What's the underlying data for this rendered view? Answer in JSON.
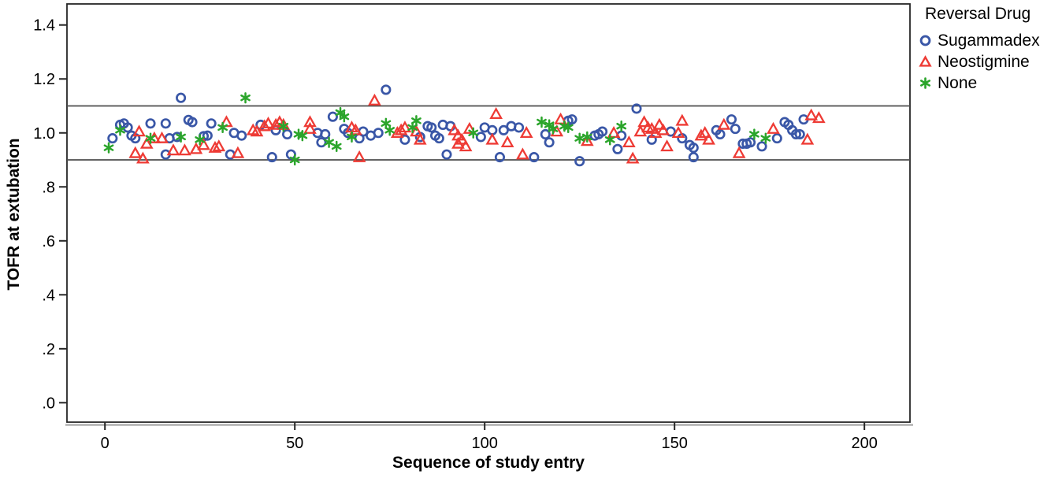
{
  "chart_data": {
    "type": "scatter",
    "xlabel": "Sequence of study entry",
    "ylabel": "TOFR at extubation",
    "xlim": [
      -10,
      212
    ],
    "ylim": [
      -0.072,
      1.478
    ],
    "x_ticks": [
      {
        "v": 0,
        "label": "0"
      },
      {
        "v": 50,
        "label": "50"
      },
      {
        "v": 100,
        "label": "100"
      },
      {
        "v": 150,
        "label": "150"
      },
      {
        "v": 200,
        "label": "200"
      }
    ],
    "y_ticks": [
      {
        "v": 1.4,
        "label": "1.4"
      },
      {
        "v": 1.2,
        "label": "1.2"
      },
      {
        "v": 1.0,
        "label": "1.0"
      },
      {
        "v": 0.8,
        "label": ".8"
      },
      {
        "v": 0.6,
        "label": ".6"
      },
      {
        "v": 0.4,
        "label": ".4"
      },
      {
        "v": 0.2,
        "label": ".2"
      },
      {
        "v": 0.0,
        "label": ".0"
      }
    ],
    "reference_lines": [
      1.1,
      0.9
    ],
    "legend": {
      "title": "Reversal Drug",
      "position": "top-right-outside"
    },
    "colors": {
      "frame": "#262626",
      "reference_line": "#4d4d4d",
      "frame_shadow": "#b0b0b0",
      "text": "#000000"
    },
    "series": [
      {
        "name": "Sugammadex",
        "marker": "circle",
        "color": "#3a57a7",
        "points": [
          [
            2,
            0.98
          ],
          [
            4,
            1.03
          ],
          [
            5,
            1.035
          ],
          [
            6,
            1.02
          ],
          [
            7,
            0.99
          ],
          [
            8,
            0.98
          ],
          [
            12,
            1.035
          ],
          [
            16,
            1.035
          ],
          [
            16,
            0.92
          ],
          [
            17,
            0.98
          ],
          [
            19,
            0.985
          ],
          [
            20,
            1.13
          ],
          [
            22,
            1.048
          ],
          [
            23,
            1.04
          ],
          [
            26,
            0.988
          ],
          [
            27,
            0.99
          ],
          [
            28,
            1.035
          ],
          [
            33,
            0.92
          ],
          [
            34,
            1.0
          ],
          [
            36,
            0.99
          ],
          [
            41,
            1.03
          ],
          [
            44,
            0.91
          ],
          [
            45,
            1.01
          ],
          [
            48,
            0.995
          ],
          [
            49,
            0.92
          ],
          [
            56,
            1.0
          ],
          [
            57,
            0.965
          ],
          [
            58,
            0.995
          ],
          [
            60,
            1.06
          ],
          [
            63,
            1.015
          ],
          [
            64,
            1.0
          ],
          [
            67,
            0.98
          ],
          [
            68,
            1.005
          ],
          [
            70,
            0.99
          ],
          [
            72,
            1.0
          ],
          [
            74,
            1.16
          ],
          [
            79,
            0.975
          ],
          [
            83,
            0.985
          ],
          [
            85,
            1.025
          ],
          [
            86,
            1.02
          ],
          [
            87,
            0.99
          ],
          [
            88,
            0.98
          ],
          [
            89,
            1.03
          ],
          [
            90,
            0.92
          ],
          [
            91,
            1.025
          ],
          [
            99,
            0.985
          ],
          [
            100,
            1.02
          ],
          [
            102,
            1.01
          ],
          [
            104,
            0.91
          ],
          [
            105,
            1.01
          ],
          [
            107,
            1.025
          ],
          [
            109,
            1.02
          ],
          [
            113,
            0.91
          ],
          [
            116,
            0.995
          ],
          [
            117,
            0.965
          ],
          [
            122,
            1.045
          ],
          [
            123,
            1.05
          ],
          [
            125,
            0.895
          ],
          [
            129,
            0.99
          ],
          [
            130,
            0.995
          ],
          [
            131,
            1.005
          ],
          [
            135,
            0.94
          ],
          [
            136,
            0.99
          ],
          [
            140,
            1.09
          ],
          [
            144,
            0.975
          ],
          [
            149,
            1.005
          ],
          [
            152,
            0.98
          ],
          [
            154,
            0.955
          ],
          [
            155,
            0.945
          ],
          [
            155,
            0.91
          ],
          [
            161,
            1.01
          ],
          [
            162,
            0.995
          ],
          [
            165,
            1.05
          ],
          [
            166,
            1.015
          ],
          [
            168,
            0.96
          ],
          [
            169,
            0.96
          ],
          [
            170,
            0.965
          ],
          [
            173,
            0.95
          ],
          [
            177,
            0.98
          ],
          [
            179,
            1.04
          ],
          [
            180,
            1.03
          ],
          [
            181,
            1.01
          ],
          [
            182,
            0.995
          ],
          [
            183,
            0.995
          ],
          [
            184,
            1.05
          ]
        ]
      },
      {
        "name": "Neostigmine",
        "marker": "triangle",
        "color": "#ee3b35",
        "points": [
          [
            8,
            0.925
          ],
          [
            9,
            1.005
          ],
          [
            10,
            0.905
          ],
          [
            11,
            0.96
          ],
          [
            13,
            0.98
          ],
          [
            15,
            0.98
          ],
          [
            18,
            0.935
          ],
          [
            21,
            0.935
          ],
          [
            24,
            0.94
          ],
          [
            26,
            0.955
          ],
          [
            29,
            0.945
          ],
          [
            30,
            0.95
          ],
          [
            32,
            1.04
          ],
          [
            35,
            0.925
          ],
          [
            39,
            1.01
          ],
          [
            40,
            1.005
          ],
          [
            42,
            1.025
          ],
          [
            43,
            1.035
          ],
          [
            45,
            1.03
          ],
          [
            46,
            1.04
          ],
          [
            47,
            1.03
          ],
          [
            54,
            1.04
          ],
          [
            54,
            1.015
          ],
          [
            65,
            1.02
          ],
          [
            66,
            1.01
          ],
          [
            67,
            0.91
          ],
          [
            71,
            1.12
          ],
          [
            77,
            1.0
          ],
          [
            78,
            1.01
          ],
          [
            79,
            1.02
          ],
          [
            82,
            1.005
          ],
          [
            83,
            0.975
          ],
          [
            92,
            1.01
          ],
          [
            93,
            0.99
          ],
          [
            93,
            0.96
          ],
          [
            94,
            0.975
          ],
          [
            95,
            0.95
          ],
          [
            96,
            1.015
          ],
          [
            102,
            0.975
          ],
          [
            103,
            1.07
          ],
          [
            106,
            0.965
          ],
          [
            110,
            0.92
          ],
          [
            111,
            1.0
          ],
          [
            119,
            1.005
          ],
          [
            120,
            1.05
          ],
          [
            127,
            0.97
          ],
          [
            134,
            1.0
          ],
          [
            138,
            0.965
          ],
          [
            139,
            0.905
          ],
          [
            141,
            1.005
          ],
          [
            142,
            1.04
          ],
          [
            143,
            1.02
          ],
          [
            144,
            1.015
          ],
          [
            145,
            1.0
          ],
          [
            146,
            1.03
          ],
          [
            147,
            1.01
          ],
          [
            148,
            0.95
          ],
          [
            151,
            1.0
          ],
          [
            152,
            1.045
          ],
          [
            157,
            0.99
          ],
          [
            158,
            1.0
          ],
          [
            159,
            0.975
          ],
          [
            163,
            1.03
          ],
          [
            167,
            0.925
          ],
          [
            176,
            1.015
          ],
          [
            185,
            0.975
          ],
          [
            186,
            1.065
          ],
          [
            188,
            1.055
          ]
        ]
      },
      {
        "name": "None",
        "marker": "asterisk",
        "color": "#2ba52b",
        "points": [
          [
            1,
            0.945
          ],
          [
            4,
            1.01
          ],
          [
            12,
            0.98
          ],
          [
            20,
            0.985
          ],
          [
            25,
            0.975
          ],
          [
            31,
            1.02
          ],
          [
            37,
            1.13
          ],
          [
            47,
            1.025
          ],
          [
            50,
            0.9
          ],
          [
            51,
            0.995
          ],
          [
            52,
            0.99
          ],
          [
            59,
            0.965
          ],
          [
            61,
            0.95
          ],
          [
            62,
            1.075
          ],
          [
            63,
            1.06
          ],
          [
            65,
            0.985
          ],
          [
            74,
            1.035
          ],
          [
            75,
            1.01
          ],
          [
            81,
            1.02
          ],
          [
            82,
            1.045
          ],
          [
            97,
            1.0
          ],
          [
            115,
            1.04
          ],
          [
            117,
            1.03
          ],
          [
            118,
            1.015
          ],
          [
            121,
            1.025
          ],
          [
            122,
            1.02
          ],
          [
            125,
            0.98
          ],
          [
            127,
            0.985
          ],
          [
            133,
            0.975
          ],
          [
            136,
            1.025
          ],
          [
            171,
            0.995
          ],
          [
            174,
            0.98
          ]
        ]
      }
    ]
  }
}
